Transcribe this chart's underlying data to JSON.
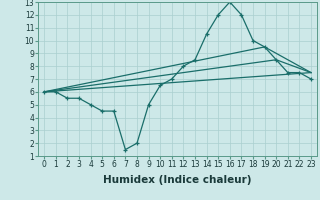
{
  "title": "",
  "xlabel": "Humidex (Indice chaleur)",
  "xlim": [
    -0.5,
    23.5
  ],
  "ylim": [
    1,
    13
  ],
  "xticks": [
    0,
    1,
    2,
    3,
    4,
    5,
    6,
    7,
    8,
    9,
    10,
    11,
    12,
    13,
    14,
    15,
    16,
    17,
    18,
    19,
    20,
    21,
    22,
    23
  ],
  "yticks": [
    1,
    2,
    3,
    4,
    5,
    6,
    7,
    8,
    9,
    10,
    11,
    12,
    13
  ],
  "bg_color": "#cde8e8",
  "grid_color": "#aacfcf",
  "line_color": "#1a6e6a",
  "lines": [
    {
      "x": [
        0,
        1,
        2,
        3,
        4,
        5,
        6,
        7,
        8,
        9,
        10,
        11,
        12,
        13,
        14,
        15,
        16,
        17,
        18,
        19,
        20,
        21,
        22,
        23
      ],
      "y": [
        6,
        6,
        5.5,
        5.5,
        5,
        4.5,
        4.5,
        1.5,
        2,
        5,
        6.5,
        7,
        8,
        8.5,
        10.5,
        12,
        13,
        12,
        10,
        9.5,
        8.5,
        7.5,
        7.5,
        7
      ],
      "marker": "+"
    },
    {
      "x": [
        0,
        23
      ],
      "y": [
        6,
        7.5
      ],
      "marker": null
    },
    {
      "x": [
        0,
        20,
        23
      ],
      "y": [
        6,
        8.5,
        7.5
      ],
      "marker": null
    },
    {
      "x": [
        0,
        19,
        23
      ],
      "y": [
        6,
        9.5,
        7.5
      ],
      "marker": null
    }
  ],
  "tick_fontsize": 5.5,
  "label_fontsize": 7.5
}
